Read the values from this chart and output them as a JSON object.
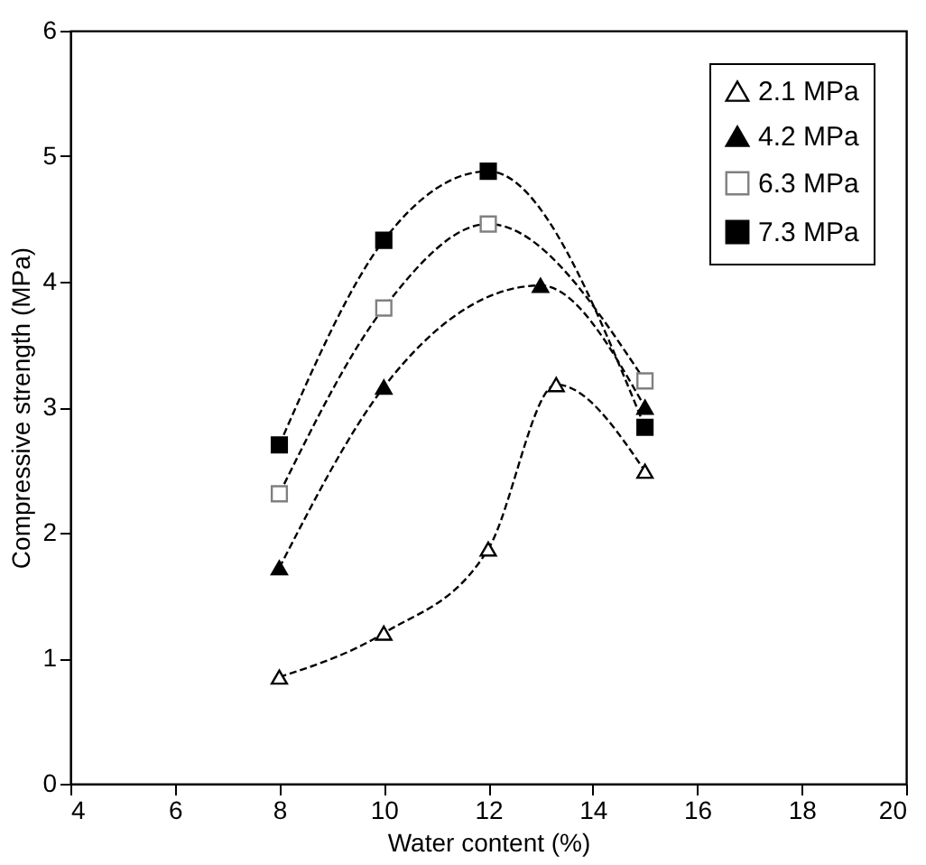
{
  "chart_data": {
    "type": "line",
    "xlabel": "Water content (%)",
    "ylabel": "Compressive strength (MPa)",
    "xlim": [
      4,
      20
    ],
    "xticks": [
      4,
      6,
      8,
      10,
      12,
      14,
      16,
      18,
      20
    ],
    "ylim": [
      0,
      6
    ],
    "yticks": [
      0,
      1,
      2,
      3,
      4,
      5,
      6
    ],
    "grid": false,
    "legend": "top right",
    "line_style": "dashed",
    "series": [
      {
        "name": "2.1 MPa",
        "color": "#000000",
        "marker": "triangle-open",
        "x": [
          8,
          10,
          12,
          13.3,
          15
        ],
        "values": [
          0.85,
          1.2,
          1.87,
          3.18,
          2.49
        ]
      },
      {
        "name": "4.2 MPa",
        "color": "#000000",
        "marker": "triangle",
        "x": [
          8,
          10,
          13,
          15
        ],
        "values": [
          1.72,
          3.16,
          3.97,
          3.0
        ]
      },
      {
        "name": "6.3 MPa",
        "color": "#808080",
        "marker": "square-open",
        "x": [
          8,
          10,
          12,
          15
        ],
        "values": [
          2.31,
          3.79,
          4.46,
          3.21
        ]
      },
      {
        "name": "7.3 MPa",
        "color": "#000000",
        "marker": "square",
        "x": [
          8,
          10,
          12,
          15
        ],
        "values": [
          2.7,
          4.33,
          4.88,
          2.84
        ]
      }
    ]
  }
}
